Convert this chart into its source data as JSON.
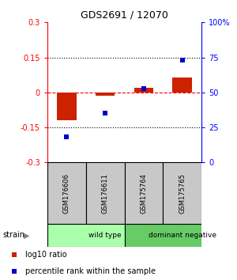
{
  "title": "GDS2691 / 12070",
  "samples": [
    "GSM176606",
    "GSM176611",
    "GSM175764",
    "GSM175765"
  ],
  "log10_ratio": [
    -0.12,
    -0.015,
    0.02,
    0.065
  ],
  "percentile_rank": [
    18,
    35,
    53,
    73
  ],
  "groups": [
    {
      "label": "wild type",
      "color": "#AAFFAA",
      "start": 0,
      "end": 2
    },
    {
      "label": "dominant negative",
      "color": "#66CC66",
      "start": 2,
      "end": 4
    }
  ],
  "group_row_label": "strain",
  "bar_color": "#CC2200",
  "dot_color": "#0000CC",
  "left_ylim": [
    -0.3,
    0.3
  ],
  "right_ylim": [
    0,
    100
  ],
  "left_yticks": [
    -0.3,
    -0.15,
    0,
    0.15,
    0.3
  ],
  "right_yticks": [
    0,
    25,
    50,
    75,
    100
  ],
  "right_yticklabels": [
    "0",
    "25",
    "50",
    "75",
    "100%"
  ],
  "hlines_dotted": [
    -0.15,
    0.15
  ],
  "hline_dashed_color": "red",
  "legend_items": [
    {
      "color": "#CC2200",
      "label": "log10 ratio"
    },
    {
      "color": "#0000CC",
      "label": "percentile rank within the sample"
    }
  ],
  "sample_box_color": "#C8C8C8",
  "background_color": "#FFFFFF"
}
